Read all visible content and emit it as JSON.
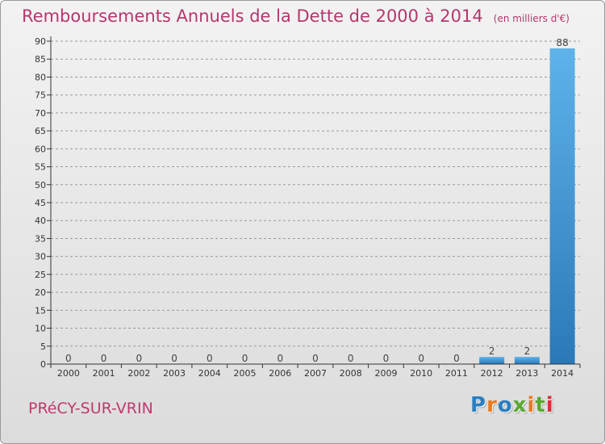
{
  "header": {
    "title": "Remboursements Annuels de la Dette de 2000 à 2014",
    "subtitle": "(en milliers d'€)"
  },
  "footer": {
    "town": "PRéCY-SUR-VRIN",
    "logo_text": "Proxiti",
    "logo_colors": [
      "#2a7fc0",
      "#e8791e",
      "#2a7fc0",
      "#5aa832",
      "#e8791e",
      "#5aa832",
      "#d62f3f"
    ]
  },
  "colors": {
    "title": "#b5366e",
    "bar_top": "#5eb3ea",
    "bar_bottom": "#2a78b8",
    "gridline": "#9a9a9a",
    "axis": "#333333"
  },
  "chart_data": {
    "type": "bar",
    "categories": [
      "2000",
      "2001",
      "2002",
      "2003",
      "2004",
      "2005",
      "2006",
      "2007",
      "2008",
      "2009",
      "2010",
      "2011",
      "2012",
      "2013",
      "2014"
    ],
    "values": [
      0,
      0,
      0,
      0,
      0,
      0,
      0,
      0,
      0,
      0,
      0,
      0,
      2,
      2,
      88
    ],
    "data_labels": [
      "0",
      "0",
      "0",
      "0",
      "0",
      "0",
      "0",
      "0",
      "0",
      "0",
      "0",
      "0",
      "2",
      "2",
      "88"
    ],
    "ylim": [
      0,
      90
    ],
    "yticks": [
      0,
      5,
      10,
      15,
      20,
      25,
      30,
      35,
      40,
      45,
      50,
      55,
      60,
      65,
      70,
      75,
      80,
      85,
      90
    ],
    "grid": "horizontal-dashed",
    "legend": "none"
  }
}
